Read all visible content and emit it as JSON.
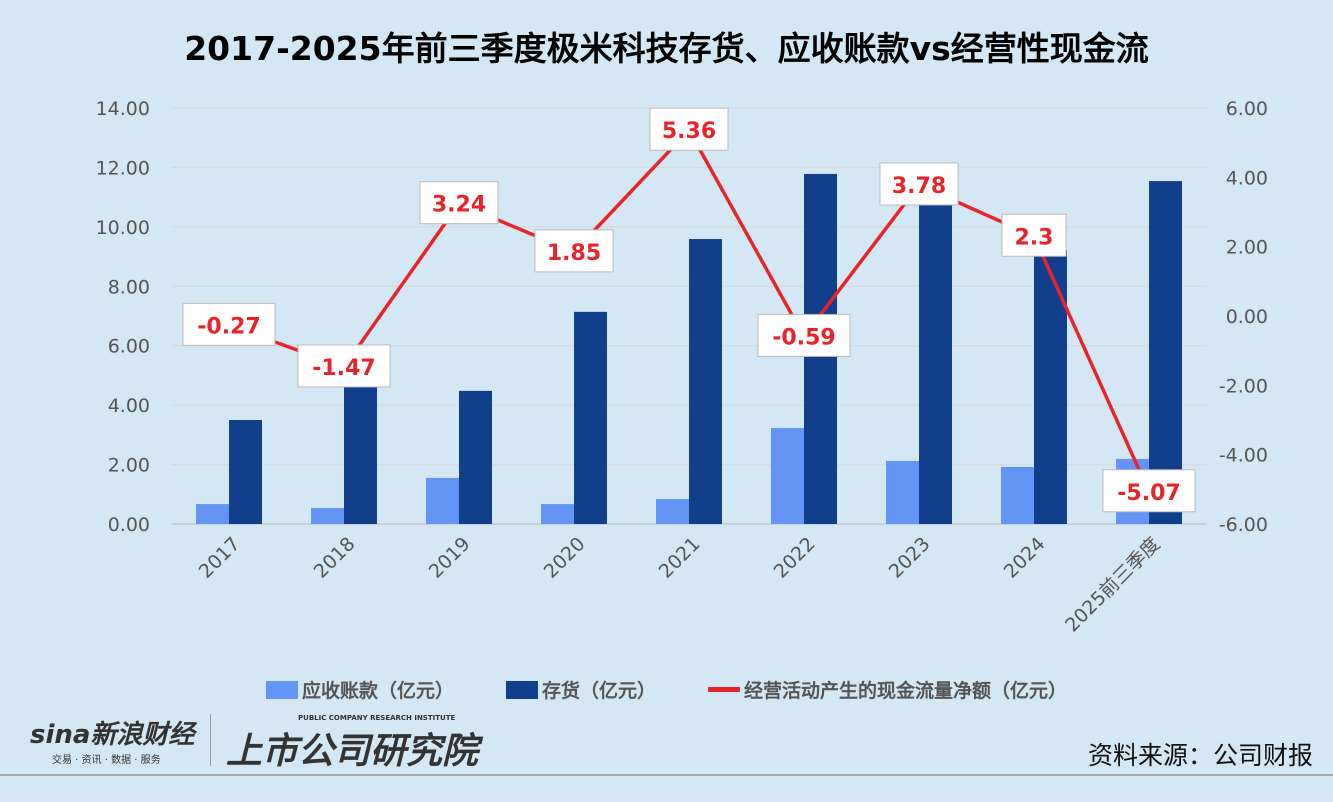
{
  "chart_data": {
    "type": "bar",
    "title": "2017-2025年前三季度极米科技存货、应收账款vs经营性现金流",
    "categories": [
      "2017",
      "2018",
      "2019",
      "2020",
      "2021",
      "2022",
      "2023",
      "2024",
      "2025前三季度"
    ],
    "series": [
      {
        "name": "应收账款（亿元）",
        "type": "bar",
        "axis": "left",
        "color": "#6495f5",
        "values": [
          0.67,
          0.54,
          1.55,
          0.67,
          0.84,
          3.23,
          2.12,
          1.92,
          2.19
        ]
      },
      {
        "name": "存货（亿元）",
        "type": "bar",
        "axis": "left",
        "color": "#123f8c",
        "values": [
          3.5,
          4.85,
          4.48,
          7.14,
          9.59,
          11.78,
          10.9,
          9.22,
          11.54
        ]
      },
      {
        "name": "经营活动产生的现金流量净额（亿元）",
        "type": "line",
        "axis": "right",
        "color": "#e8242b",
        "values": [
          -0.27,
          -1.47,
          3.24,
          1.85,
          5.36,
          -0.59,
          3.78,
          2.3,
          -5.07
        ],
        "labels": [
          "-0.27",
          "-1.47",
          "3.24",
          "1.85",
          "5.36",
          "-0.59",
          "3.78",
          "2.3",
          "-5.07"
        ]
      }
    ],
    "ylim_left": [
      0,
      14
    ],
    "yticks_left": [
      "0.00",
      "2.00",
      "4.00",
      "6.00",
      "8.00",
      "10.00",
      "12.00",
      "14.00"
    ],
    "ylim_right": [
      -6,
      6
    ],
    "yticks_right": [
      "-6.00",
      "-4.00",
      "-2.00",
      "0.00",
      "2.00",
      "4.00",
      "6.00"
    ],
    "grid": true,
    "legend": "bottom"
  },
  "source": "资料来源：公司财报",
  "logos": {
    "sina": "sina新浪财经",
    "sina_sub": "交易 · 资讯 · 数据 · 服务",
    "institute": "上市公司研究院",
    "institute_sub": "PUBLIC COMPANY RESEARCH INSTITUTE"
  }
}
